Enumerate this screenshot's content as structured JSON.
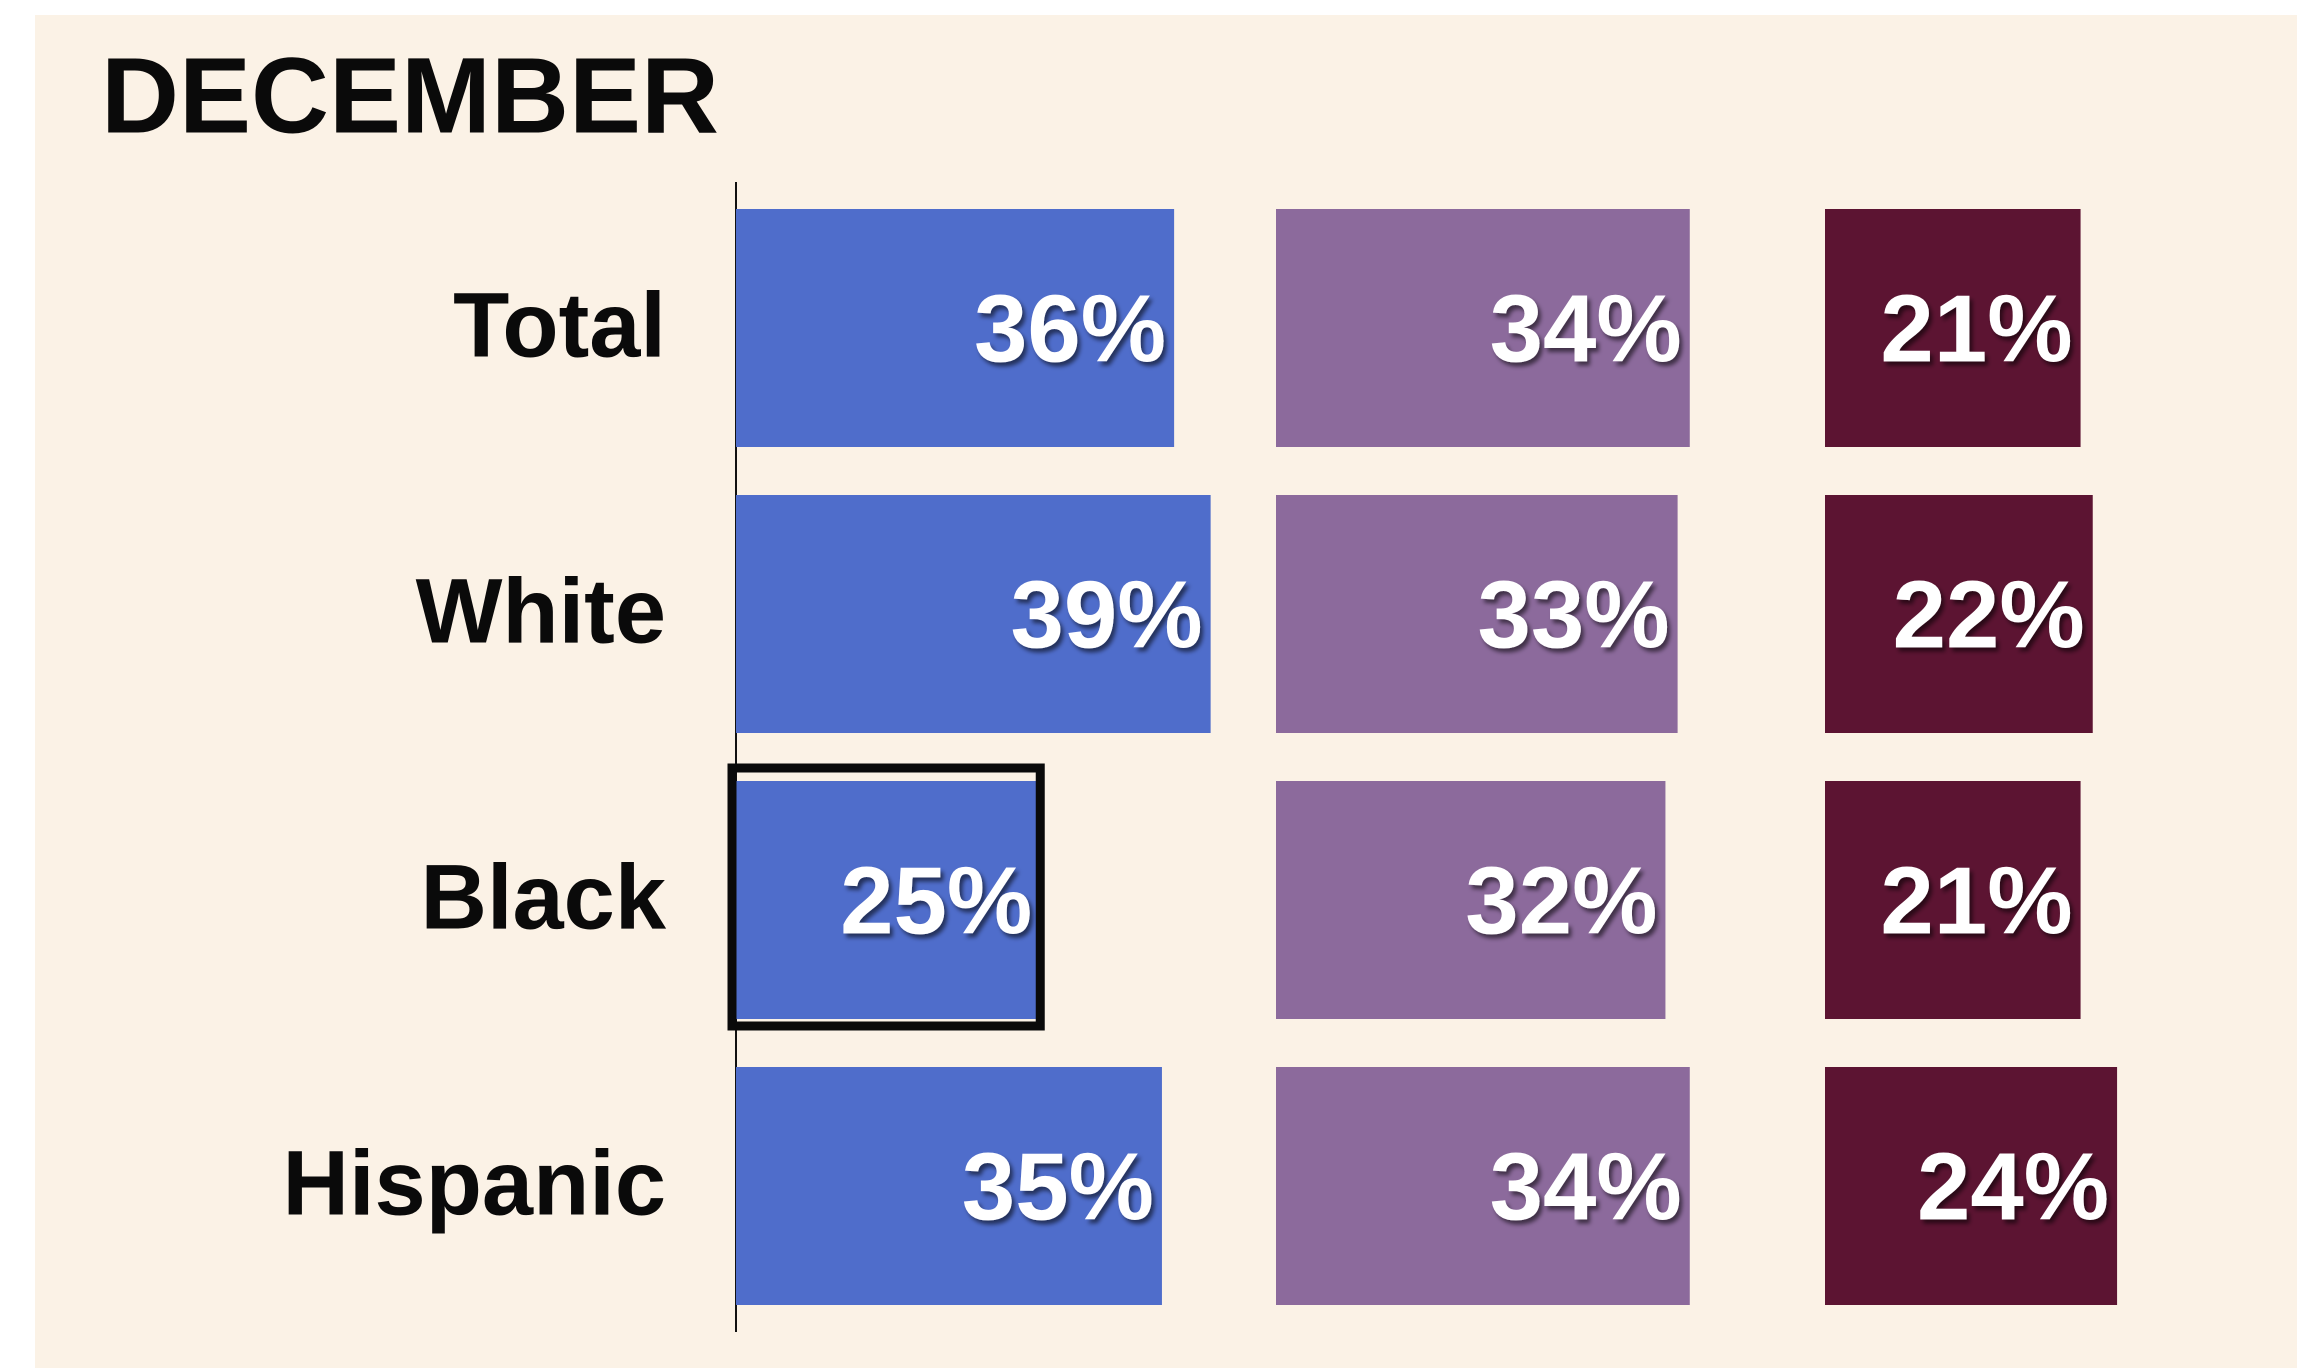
{
  "chart_data": {
    "type": "bar",
    "title": "DECEMBER",
    "categories": [
      "Total",
      "White",
      "Black",
      "Hispanic"
    ],
    "series": [
      {
        "color": "#4f6dcb",
        "values": [
          36,
          39,
          25,
          35
        ],
        "value_labels": [
          "36%",
          "39%",
          "25%",
          "35%"
        ]
      },
      {
        "color": "#8c6a9c",
        "values": [
          34,
          33,
          32,
          34
        ],
        "value_labels": [
          "34%",
          "33%",
          "32%",
          "34%"
        ]
      },
      {
        "color": "#5c1432",
        "values": [
          21,
          22,
          21,
          24
        ],
        "value_labels": [
          "21%",
          "22%",
          "21%",
          "24%"
        ]
      }
    ],
    "highlight": {
      "series": 0,
      "category": 2
    }
  }
}
